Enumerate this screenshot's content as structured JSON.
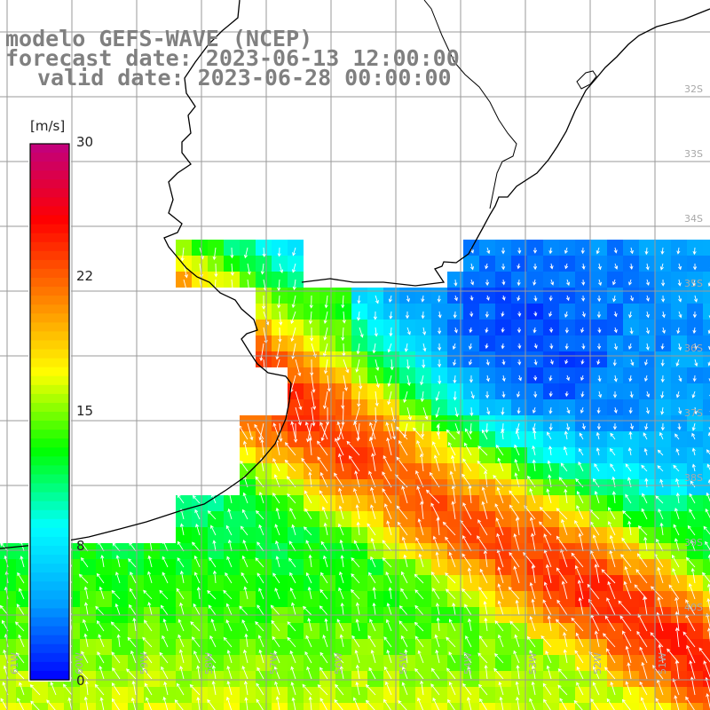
{
  "title": {
    "line1": "modelo GEFS-WAVE (NCEP)",
    "line2": "forecast date: 2023-06-13 12:00:00",
    "line3": "valid date: 2023-06-28 00:00:00"
  },
  "colorbar": {
    "unit": "[m/s]",
    "tick_labels": [
      "30",
      "22",
      "15",
      "8",
      "0"
    ],
    "range": [
      0,
      30
    ],
    "colors": [
      "#0000ff",
      "#00a0ff",
      "#00ffff",
      "#00ff00",
      "#ffff00",
      "#ff8000",
      "#ff0000",
      "#c00080"
    ]
  },
  "map": {
    "variable": "wind speed",
    "lat_labels": [
      "32S",
      "33S",
      "34S",
      "35S",
      "36S",
      "37S",
      "38S",
      "39S",
      "40S"
    ],
    "lon_labels": [
      "61W",
      "60W",
      "59W",
      "58W",
      "57W",
      "56W",
      "55W",
      "54W",
      "53W",
      "52W",
      "51W",
      "50W"
    ],
    "colors": {
      "land": "#ffffff",
      "grid_lines": "#9a9a9a",
      "coastline": "#000000",
      "wind_arrows": "#ffffff",
      "axis_labels": "#a8a8a8"
    }
  }
}
